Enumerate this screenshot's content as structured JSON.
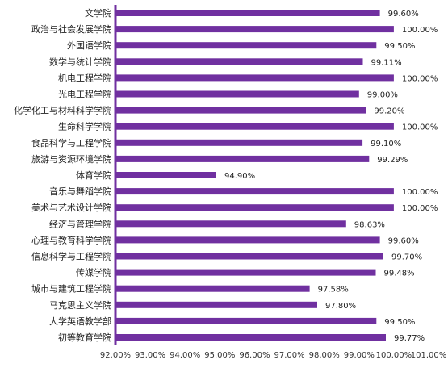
{
  "chart_data": {
    "type": "bar",
    "orientation": "horizontal",
    "title": "",
    "xlabel": "",
    "ylabel": "",
    "categories": [
      "文学院",
      "政治与社会发展学院",
      "外国语学院",
      "数学与统计学院",
      "机电工程学院",
      "光电工程学院",
      "化学化工与材料科学学院",
      "生命科学学院",
      "食品科学与工程学院",
      "旅游与资源环境学院",
      "体育学院",
      "音乐与舞蹈学院",
      "美术与艺术设计学院",
      "经济与管理学院",
      "心理与教育科学学院",
      "信息科学与工程学院",
      "传媒学院",
      "城市与建筑工程学院",
      "马克思主义学院",
      "大学英语教学部",
      "初等教育学院"
    ],
    "values": [
      99.6,
      100.0,
      99.5,
      99.11,
      100.0,
      99.0,
      99.2,
      100.0,
      99.1,
      99.29,
      94.9,
      100.0,
      100.0,
      98.63,
      99.6,
      99.7,
      99.48,
      97.58,
      97.8,
      99.5,
      99.77
    ],
    "value_labels": [
      "99.60%",
      "100.00%",
      "99.50%",
      "99.11%",
      "100.00%",
      "99.00%",
      "99.20%",
      "100.00%",
      "99.10%",
      "99.29%",
      "94.90%",
      "100.00%",
      "100.00%",
      "98.63%",
      "99.60%",
      "99.70%",
      "99.48%",
      "97.58%",
      "97.80%",
      "99.50%",
      "99.77%"
    ],
    "xlim": [
      92,
      101
    ],
    "x_ticks": [
      92,
      93,
      94,
      95,
      96,
      97,
      98,
      99,
      100,
      101
    ],
    "x_tick_labels": [
      "92.00%",
      "93.00%",
      "94.00%",
      "95.00%",
      "96.00%",
      "97.00%",
      "98.00%",
      "99.00%",
      "100.00%",
      "101.00%"
    ],
    "grid": false,
    "legend": "none",
    "bar_color": "#7030A0",
    "axis_color": "#7030A0"
  }
}
